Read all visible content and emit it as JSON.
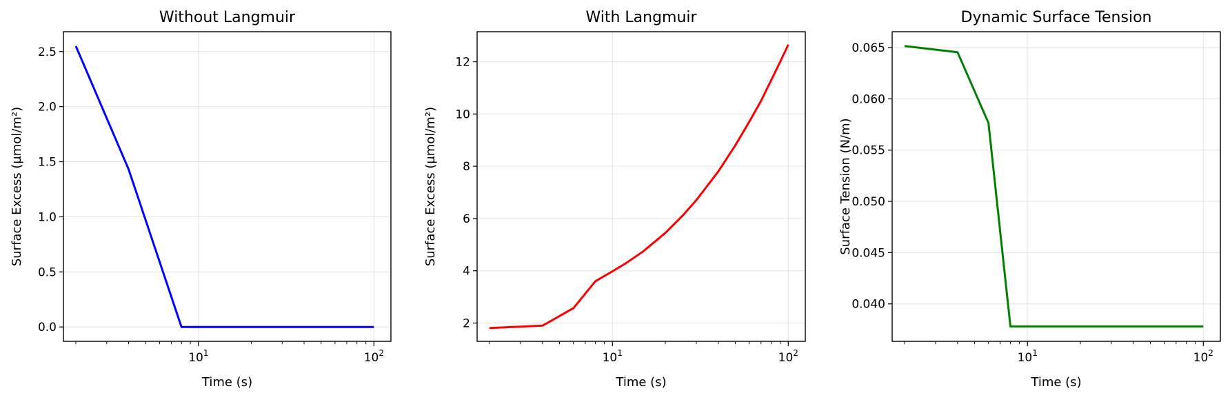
{
  "chart_data": [
    {
      "type": "line",
      "title": "Without Langmuir",
      "xlabel": "Time (s)",
      "ylabel": "Surface Excess (µmol/m²)",
      "xscale": "log",
      "xlim": [
        1.7,
        125
      ],
      "ylim": [
        -0.13,
        2.68
      ],
      "yticks": [
        0.0,
        0.5,
        1.0,
        1.5,
        2.0,
        2.5
      ],
      "ytick_labels": [
        "0.0",
        "0.5",
        "1.0",
        "1.5",
        "2.0",
        "2.5"
      ],
      "xticks": [
        10,
        100
      ],
      "xtick_labels": [
        [
          "10",
          "1"
        ],
        [
          "10",
          "2"
        ]
      ],
      "grid": true,
      "series": [
        {
          "color": "#0000ff",
          "x": [
            2,
            4,
            8,
            10,
            20,
            40,
            60,
            80,
            100
          ],
          "y": [
            2.55,
            1.43,
            0.0,
            0.0,
            0.0,
            0.0,
            0.0,
            0.0,
            0.0
          ]
        }
      ]
    },
    {
      "type": "line",
      "title": "With Langmuir",
      "xlabel": "Time (s)",
      "ylabel": "Surface Excess (µmol/m²)",
      "xscale": "log",
      "xlim": [
        1.7,
        125
      ],
      "ylim": [
        1.3,
        13.15
      ],
      "yticks": [
        2,
        4,
        6,
        8,
        10,
        12
      ],
      "ytick_labels": [
        "2",
        "4",
        "6",
        "8",
        "10",
        "12"
      ],
      "xticks": [
        10,
        100
      ],
      "xtick_labels": [
        [
          "10",
          "1"
        ],
        [
          "10",
          "2"
        ]
      ],
      "grid": true,
      "series": [
        {
          "color": "#ff0000",
          "x": [
            2,
            4,
            6,
            8,
            10,
            12,
            15,
            20,
            25,
            30,
            40,
            50,
            60,
            70,
            80,
            90,
            100
          ],
          "y": [
            1.81,
            1.9,
            2.57,
            3.6,
            3.98,
            4.3,
            4.75,
            5.45,
            6.1,
            6.7,
            7.8,
            8.8,
            9.7,
            10.5,
            11.3,
            12.0,
            12.65
          ]
        }
      ]
    },
    {
      "type": "line",
      "title": "Dynamic Surface Tension",
      "xlabel": "Time (s)",
      "ylabel": "Surface Tension (N/m)",
      "xscale": "log",
      "xlim": [
        1.7,
        125
      ],
      "ylim": [
        0.03635,
        0.06655
      ],
      "yticks": [
        0.04,
        0.045,
        0.05,
        0.055,
        0.06,
        0.065
      ],
      "ytick_labels": [
        "0.040",
        "0.045",
        "0.050",
        "0.055",
        "0.060",
        "0.065"
      ],
      "xticks": [
        10,
        100
      ],
      "xtick_labels": [
        [
          "10",
          "1"
        ],
        [
          "10",
          "2"
        ]
      ],
      "grid": true,
      "series": [
        {
          "color": "#008000",
          "x": [
            2,
            4,
            6,
            8,
            10,
            20,
            40,
            60,
            80,
            100
          ],
          "y": [
            0.06515,
            0.06455,
            0.05765,
            0.0378,
            0.0378,
            0.0378,
            0.0378,
            0.0378,
            0.0378,
            0.0378
          ]
        }
      ]
    }
  ]
}
